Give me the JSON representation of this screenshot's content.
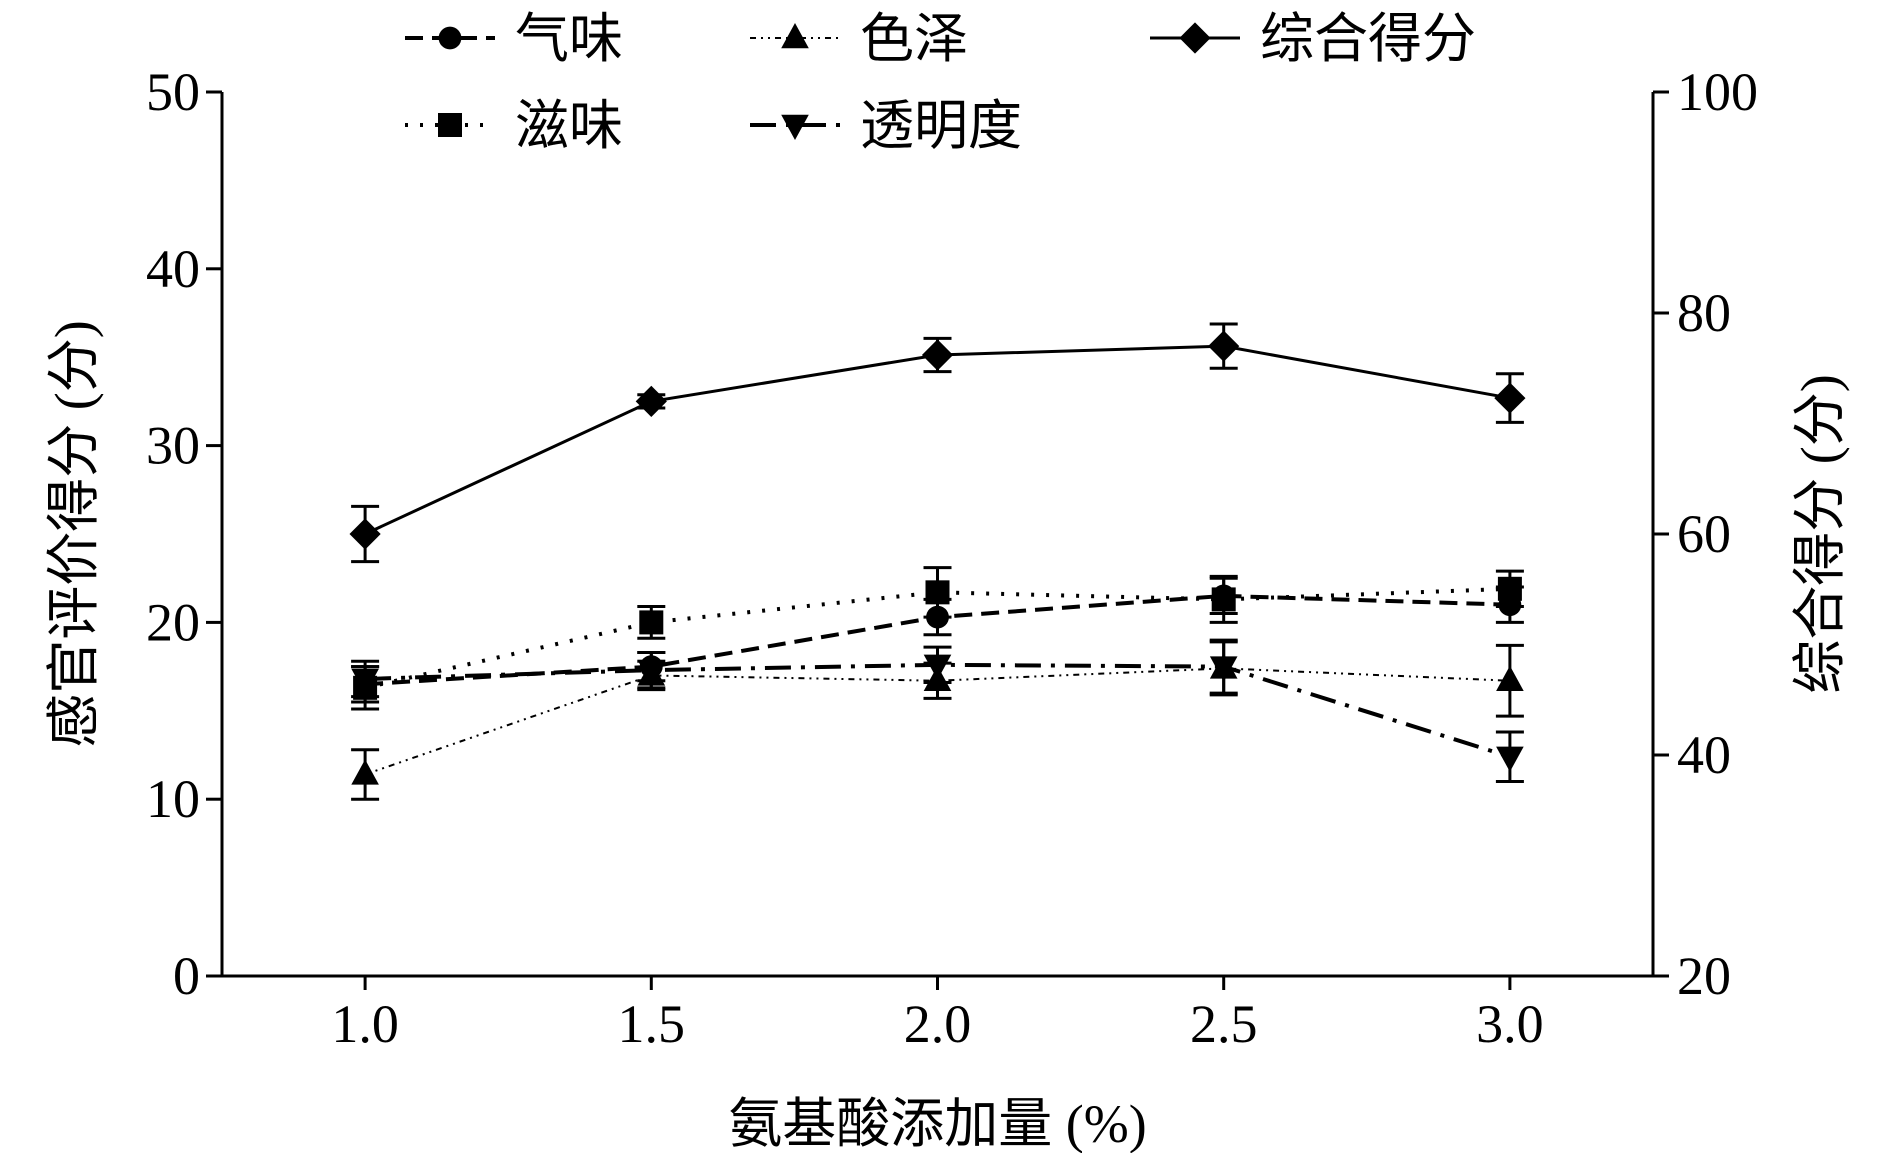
{
  "chart_data": {
    "type": "line",
    "x": [
      1.0,
      1.5,
      2.0,
      2.5,
      3.0
    ],
    "x_tick_labels": [
      "1.0",
      "1.5",
      "2.0",
      "2.5",
      "3.0"
    ],
    "xlim": [
      0.75,
      3.25
    ],
    "xlabel": "氨基酸添加量 (%)",
    "ylabel_left": "感官评价得分 (分)",
    "ylabel_right": "综合得分 (分)",
    "ylim_left": [
      0,
      50
    ],
    "ylim_right": [
      20,
      100
    ],
    "yticks_left": [
      "0",
      "10",
      "20",
      "30",
      "40",
      "50"
    ],
    "yticks_right": [
      "20",
      "40",
      "60",
      "80",
      "100"
    ],
    "grid": false,
    "legend_position": "top",
    "series": [
      {
        "name": "气味",
        "axis": "left",
        "marker": "circle",
        "dash": "18,9",
        "stroke_width": 4,
        "values": [
          16.5,
          17.5,
          20.3,
          21.5,
          21.0
        ],
        "errors": [
          1.0,
          0.8,
          1.0,
          1.0,
          1.0
        ]
      },
      {
        "name": "色泽",
        "axis": "left",
        "marker": "triangle-up",
        "dash": "6,5,2,5,2,5",
        "stroke_width": 2,
        "values": [
          11.4,
          17.0,
          16.7,
          17.4,
          16.7
        ],
        "errors": [
          1.4,
          0.8,
          1.0,
          1.5,
          2.0
        ]
      },
      {
        "name": "综合得分",
        "axis": "right",
        "marker": "diamond",
        "dash": "",
        "stroke_width": 3,
        "values": [
          60.0,
          72.0,
          76.2,
          77.0,
          72.3
        ],
        "errors": [
          2.5,
          0.6,
          1.5,
          2.0,
          2.2
        ]
      },
      {
        "name": "滋味",
        "axis": "left",
        "marker": "square",
        "dash": "3,12",
        "stroke_width": 4,
        "values": [
          16.3,
          20.0,
          21.7,
          21.3,
          21.9
        ],
        "errors": [
          1.2,
          0.9,
          1.4,
          1.3,
          1.0
        ]
      },
      {
        "name": "透明度",
        "axis": "left",
        "marker": "triangle-down",
        "dash": "26,10,4,10",
        "stroke_width": 4,
        "values": [
          16.8,
          17.3,
          17.6,
          17.5,
          12.4
        ],
        "errors": [
          1.0,
          1.0,
          1.0,
          1.5,
          1.4
        ]
      }
    ]
  }
}
